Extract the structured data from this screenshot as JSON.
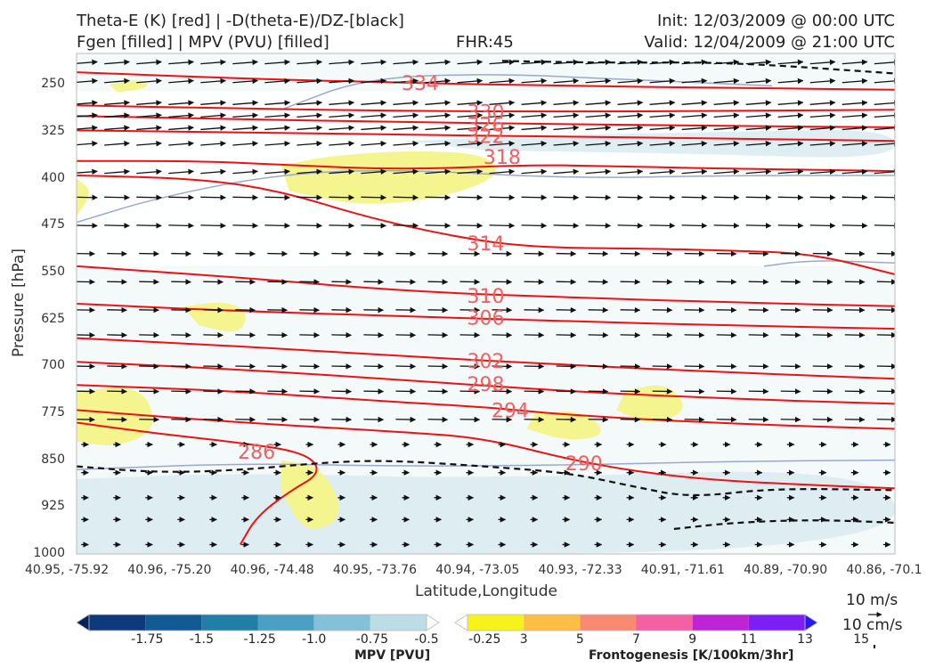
{
  "header": {
    "title_line1": "Theta-E (K) [red] | -D(theta-E)/DZ-[black]",
    "title_line2": "Fgen [filled] | MPV (PVU) [filled]",
    "fhr": "FHR:45",
    "init": "Init: 12/03/2009 @ 00:00 UTC",
    "valid": "Valid: 12/04/2009 @ 21:00 UTC"
  },
  "chart_data": {
    "type": "cross-section",
    "xlabel": "Latitude,Longitude",
    "ylabel": "Pressure [hPa]",
    "x_ticks": [
      "40.95, -75.92",
      "40.96, -75.20",
      "40.96, -74.48",
      "40.95, -73.76",
      "40.94, -73.05",
      "40.93, -72.33",
      "40.91, -71.61",
      "40.89, -70.90",
      "40.86, -70.1"
    ],
    "y_ticks": [
      "250",
      "325",
      "400",
      "475",
      "550",
      "625",
      "700",
      "775",
      "850",
      "925",
      "1000"
    ],
    "ylim": [
      1000,
      200
    ],
    "theta_e_contour_labels": [
      {
        "value": "334",
        "x_frac": 0.42,
        "pressure": 247
      },
      {
        "value": "330",
        "x_frac": 0.5,
        "pressure": 293
      },
      {
        "value": "326",
        "x_frac": 0.5,
        "pressure": 313
      },
      {
        "value": "322",
        "x_frac": 0.5,
        "pressure": 332
      },
      {
        "value": "318",
        "x_frac": 0.52,
        "pressure": 365
      },
      {
        "value": "314",
        "x_frac": 0.5,
        "pressure": 503
      },
      {
        "value": "310",
        "x_frac": 0.5,
        "pressure": 587
      },
      {
        "value": "306",
        "x_frac": 0.5,
        "pressure": 622
      },
      {
        "value": "302",
        "x_frac": 0.5,
        "pressure": 691
      },
      {
        "value": "298",
        "x_frac": 0.5,
        "pressure": 728
      },
      {
        "value": "294",
        "x_frac": 0.53,
        "pressure": 770
      },
      {
        "value": "290",
        "x_frac": 0.62,
        "pressure": 855
      },
      {
        "value": "286",
        "x_frac": 0.22,
        "pressure": 836
      }
    ],
    "theta_e_contours": [
      {
        "value": 334,
        "x": [
          0.0,
          0.2,
          0.4,
          0.6,
          0.8,
          1.0
        ],
        "pressure": [
          230,
          240,
          247,
          252,
          255,
          258
        ]
      },
      {
        "value": 330,
        "x": [
          0.0,
          0.2,
          0.4,
          0.6,
          0.8,
          1.0
        ],
        "pressure": [
          283,
          288,
          292,
          293,
          292,
          290
        ]
      },
      {
        "value": 326,
        "x": [
          0.0,
          0.2,
          0.4,
          0.6,
          0.8,
          1.0
        ],
        "pressure": [
          300,
          305,
          310,
          313,
          316,
          318
        ]
      },
      {
        "value": 322,
        "x": [
          0.0,
          0.2,
          0.4,
          0.6,
          0.8,
          1.0
        ],
        "pressure": [
          323,
          326,
          330,
          333,
          336,
          340
        ]
      },
      {
        "value": 318,
        "x": [
          0.0,
          0.15,
          0.25,
          0.4,
          0.55,
          0.65,
          0.75,
          0.9,
          1.0
        ],
        "pressure": [
          372,
          372,
          378,
          386,
          378,
          380,
          383,
          386,
          388
        ]
      },
      {
        "value": 314,
        "x": [
          0.0,
          0.15,
          0.25,
          0.35,
          0.45,
          0.55,
          0.7,
          0.8,
          0.9,
          1.0
        ],
        "pressure": [
          395,
          400,
          420,
          460,
          490,
          510,
          512,
          515,
          520,
          553
        ]
      },
      {
        "value": 310,
        "x": [
          0.0,
          0.2,
          0.4,
          0.6,
          0.8,
          1.0
        ],
        "pressure": [
          540,
          558,
          580,
          590,
          598,
          604
        ]
      },
      {
        "value": 306,
        "x": [
          0.0,
          0.2,
          0.4,
          0.6,
          0.8,
          1.0
        ],
        "pressure": [
          600,
          612,
          620,
          628,
          635,
          640
        ]
      },
      {
        "value": 302,
        "x": [
          0.0,
          0.2,
          0.4,
          0.6,
          0.8,
          1.0
        ],
        "pressure": [
          655,
          668,
          684,
          698,
          710,
          720
        ]
      },
      {
        "value": 298,
        "x": [
          0.0,
          0.2,
          0.4,
          0.6,
          0.8,
          1.0
        ],
        "pressure": [
          693,
          705,
          722,
          740,
          752,
          760
        ]
      },
      {
        "value": 294,
        "x": [
          0.0,
          0.2,
          0.4,
          0.5,
          0.6,
          0.8,
          1.0
        ],
        "pressure": [
          730,
          740,
          758,
          765,
          778,
          792,
          800
        ]
      },
      {
        "value": 290,
        "x": [
          0.0,
          0.2,
          0.4,
          0.5,
          0.62,
          0.75,
          0.9,
          1.0
        ],
        "pressure": [
          770,
          790,
          805,
          815,
          855,
          880,
          890,
          895
        ]
      },
      {
        "value": 286,
        "x": [
          0.0,
          0.1,
          0.2,
          0.28,
          0.3,
          0.26,
          0.22,
          0.2
        ],
        "pressure": [
          790,
          808,
          822,
          838,
          870,
          900,
          940,
          985
        ]
      }
    ],
    "stability_contours_dashed": [
      {
        "x": [
          0.0,
          0.1,
          0.2,
          0.3,
          0.38,
          0.5,
          0.6,
          0.68,
          0.75,
          0.85,
          1.0
        ],
        "pressure": [
          860,
          870,
          866,
          854,
          850,
          860,
          870,
          892,
          910,
          895,
          898
        ]
      },
      {
        "x": [
          0.52,
          0.65,
          0.8,
          1.0
        ],
        "pressure": [
          212,
          215,
          214,
          232
        ]
      },
      {
        "x": [
          0.73,
          0.8,
          0.9,
          1.0
        ],
        "pressure": [
          960,
          950,
          945,
          950
        ]
      }
    ],
    "frontogenesis_yellow_regions": [
      {
        "x": [
          0.25,
          0.3,
          0.4,
          0.5,
          0.52,
          0.45,
          0.35,
          0.26
        ],
        "pressure": [
          380,
          365,
          355,
          360,
          395,
          430,
          445,
          420
        ]
      },
      {
        "x": [
          0.13,
          0.18,
          0.21,
          0.2,
          0.15
        ],
        "pressure": [
          605,
          595,
          612,
          650,
          635
        ]
      },
      {
        "x": [
          0.0,
          0.08,
          0.1,
          0.05,
          0.0
        ],
        "pressure": [
          740,
          730,
          800,
          830,
          820
        ]
      },
      {
        "x": [
          0.0,
          0.02,
          0.0
        ],
        "pressure": [
          400,
          420,
          460
        ]
      },
      {
        "x": [
          0.67,
          0.72,
          0.75,
          0.7,
          0.66
        ],
        "pressure": [
          740,
          725,
          770,
          795,
          770
        ]
      },
      {
        "x": [
          0.56,
          0.62,
          0.65,
          0.6,
          0.55
        ],
        "pressure": [
          775,
          770,
          810,
          820,
          800
        ]
      },
      {
        "x": [
          0.25,
          0.3,
          0.33,
          0.28,
          0.25
        ],
        "pressure": [
          850,
          860,
          940,
          970,
          900
        ]
      },
      {
        "x": [
          0.04,
          0.08,
          0.09,
          0.05
        ],
        "pressure": [
          250,
          240,
          255,
          262
        ]
      }
    ],
    "mpv_lightblue_regions": [
      {
        "x": [
          0.0,
          0.2,
          0.5,
          1.0,
          1.0,
          0.0
        ],
        "pressure": [
          880,
          870,
          880,
          860,
          1000,
          1000
        ]
      },
      {
        "x": [
          0.4,
          0.6,
          0.8,
          1.0,
          1.0,
          0.75,
          0.5
        ],
        "pressure": [
          340,
          330,
          325,
          320,
          370,
          360,
          355
        ]
      }
    ],
    "colorbar_mpv": {
      "title": "MPV [PVU]",
      "tick_labels": [
        "-1.75",
        "-1.5",
        "-1.25",
        "-1.0",
        "-0.75",
        "-0.5",
        "-0.25"
      ],
      "colors": [
        "#08205c",
        "#0c3a7d",
        "#115a93",
        "#1f7fa6",
        "#4aa0c2",
        "#84c1d8",
        "#bcdde6",
        "#ffffff"
      ]
    },
    "colorbar_fgen": {
      "title": "Frontogenesis [K/100km/3hr]",
      "tick_labels": [
        "3",
        "5",
        "7",
        "9",
        "11",
        "13",
        "15"
      ],
      "colors": [
        "#ffffff",
        "#f6f21b",
        "#fdbe46",
        "#f98a72",
        "#f55fa3",
        "#c022d6",
        "#7d1ff2",
        "#2a17f5"
      ]
    },
    "wind_reference": {
      "horizontal": "10 m/s",
      "vertical": "10 cm/s"
    },
    "colors": {
      "theta_e": "#ee1111",
      "theta_e_label": "#f06060",
      "stability": "#111111",
      "fgen_yellow": "#f4f58e",
      "mpv_light": "#d8ebf0",
      "mpv_line": "#99a8d0"
    }
  }
}
